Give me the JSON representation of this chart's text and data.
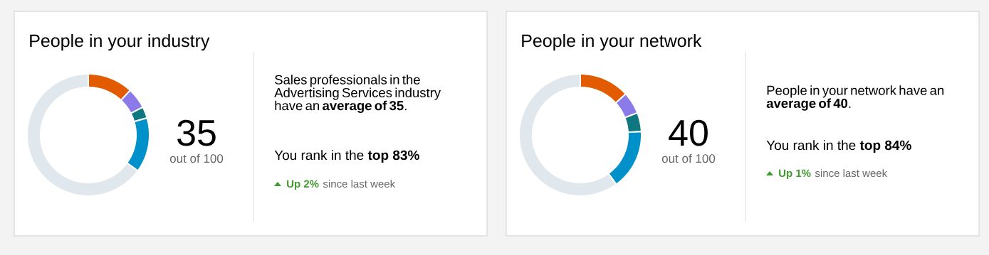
{
  "chart_data": [
    {
      "type": "donut",
      "title": "People in your industry",
      "categories": [
        null,
        null,
        null,
        null,
        null
      ],
      "values": [
        12,
        5.5,
        3,
        14.5,
        65
      ],
      "colors": [
        "#e35b00",
        "#8a7be8",
        "#0e7780",
        "#0091ca",
        "#e0e8ee"
      ],
      "annotations": [
        "35",
        "out of 100",
        "Sales professionals in the Advertising Services industry have an **average of 35**.",
        "You rank in the **top 83%**",
        "Up 2%",
        "since last week"
      ]
    },
    {
      "type": "donut",
      "title": "People in your network",
      "categories": [
        null,
        null,
        null,
        null,
        null
      ],
      "values": [
        13.3,
        5.8,
        5,
        15.9,
        60
      ],
      "colors": [
        "#e35b00",
        "#8a7be8",
        "#0e7780",
        "#0091ca",
        "#e0e8ee"
      ],
      "annotations": [
        "40",
        "out of 100",
        "People in your network have an **average of 40**.",
        "You rank in the **top 84%**",
        "Up 1%",
        "since last week"
      ]
    }
  ]
}
